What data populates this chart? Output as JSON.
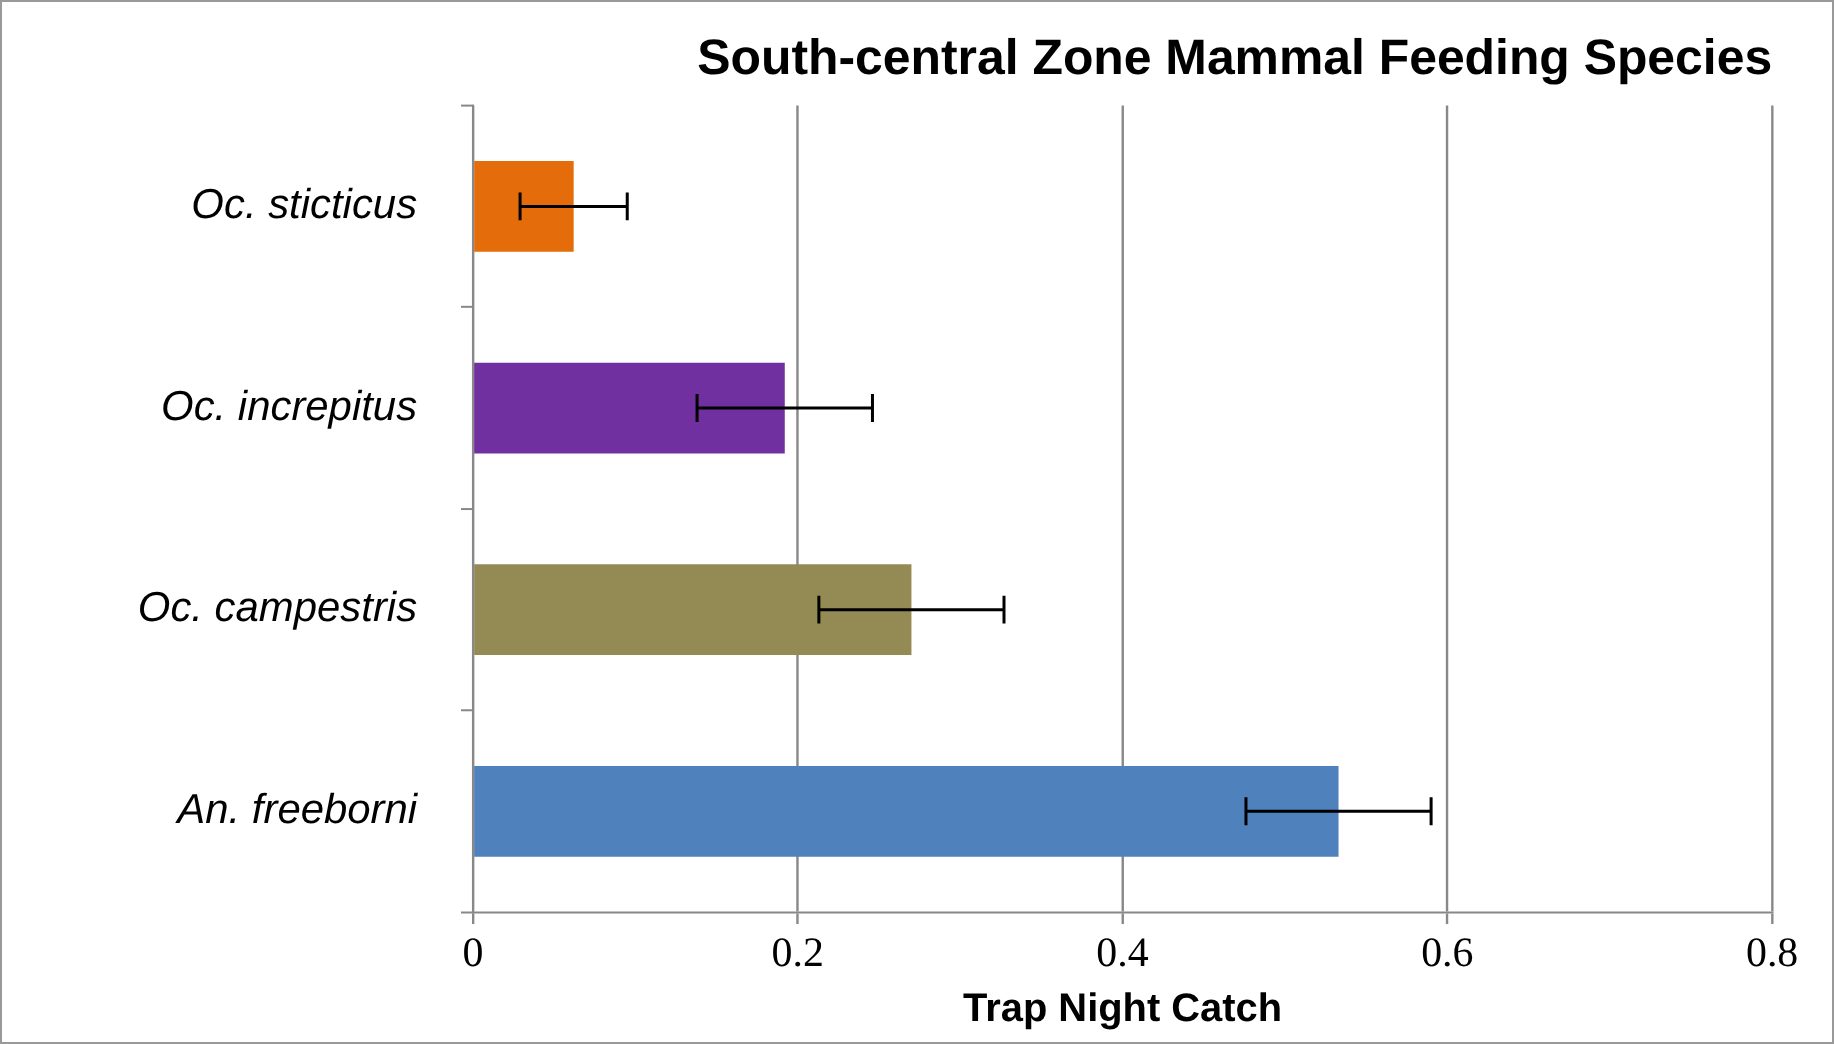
{
  "chart_data": {
    "type": "bar",
    "orientation": "horizontal",
    "title": "South-central Zone Mammal Feeding Species",
    "xlabel": "Trap Night Catch",
    "categories": [
      "Oc. sticticus",
      "Oc. increpitus",
      "Oc. campestris",
      "An. freeborni"
    ],
    "values": [
      0.062,
      0.192,
      0.27,
      0.533
    ],
    "colors": [
      "#e46c0a",
      "#7030a0",
      "#948a54",
      "#4f81bd"
    ],
    "errors": [
      0.033,
      0.054,
      0.057,
      0.057
    ],
    "xlim": [
      0,
      0.8
    ],
    "xticks": [
      0,
      0.2,
      0.4,
      0.6,
      0.8
    ],
    "grid": "x",
    "legend": false
  }
}
